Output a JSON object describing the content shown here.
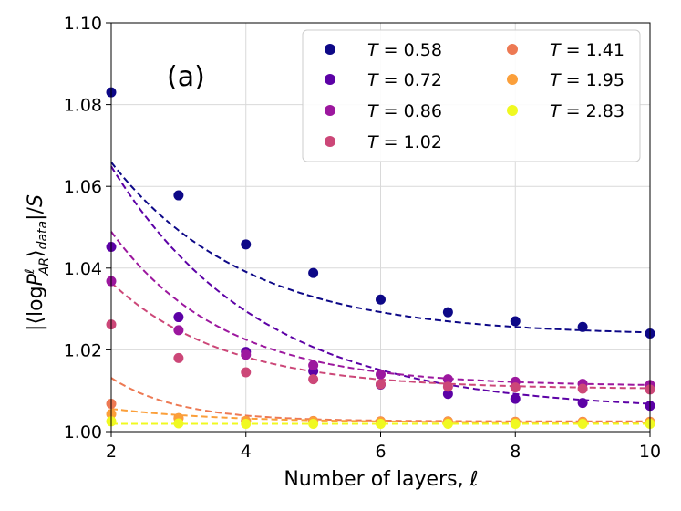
{
  "chart_data": {
    "type": "scatter",
    "panel_label": "(a)",
    "xlabel": "Number of layers, ℓ",
    "ylabel_parts": {
      "open": "|⟨log",
      "P": "P",
      "sup": "ℓ",
      "sub": "AR",
      "close": "⟩",
      "sub2": "data",
      "tail": "|/",
      "S": "S"
    },
    "xlim": [
      2,
      10
    ],
    "ylim": [
      1.0,
      1.1
    ],
    "xticks": [
      2,
      4,
      6,
      8,
      10
    ],
    "xtick_labels": [
      "2",
      "4",
      "6",
      "8",
      "10"
    ],
    "yticks": [
      1.0,
      1.02,
      1.04,
      1.06,
      1.08,
      1.1
    ],
    "ytick_labels": [
      "1.00",
      "1.02",
      "1.04",
      "1.06",
      "1.08",
      "1.10"
    ],
    "grid": true,
    "legend_position": "top-right",
    "legend_symbol": "T",
    "legend_eq": "=",
    "x": [
      2,
      3,
      4,
      5,
      6,
      7,
      8,
      9,
      10
    ],
    "series": [
      {
        "name": "0.58",
        "color": "#0d0887",
        "values": [
          1.083,
          1.0578,
          1.0458,
          1.0388,
          1.0323,
          1.0292,
          1.027,
          1.0256,
          1.024
        ],
        "fit": {
          "a": 1.0235,
          "b": 0.1153,
          "k": 0.5
        }
      },
      {
        "name": "0.72",
        "color": "#5c01a6",
        "values": [
          1.0452,
          1.028,
          1.0195,
          1.0148,
          1.0115,
          1.0092,
          1.008,
          1.007,
          1.0063
        ],
        "fit": {
          "a": 1.0052,
          "b": 0.1468,
          "k": 0.45
        }
      },
      {
        "name": "0.86",
        "color": "#9c179e",
        "values": [
          1.0368,
          1.0248,
          1.0188,
          1.0162,
          1.014,
          1.0128,
          1.0122,
          1.0117,
          1.0114
        ],
        "fit": {
          "a": 1.0111,
          "b": 0.1256,
          "k": 0.6
        }
      },
      {
        "name": "1.02",
        "color": "#cc4778",
        "values": [
          1.0262,
          1.018,
          1.0145,
          1.0128,
          1.0116,
          1.011,
          1.0108,
          1.0105,
          1.0103
        ],
        "fit": {
          "a": 1.0104,
          "b": 0.0866,
          "k": 0.6
        }
      },
      {
        "name": "1.41",
        "color": "#ed7953",
        "values": [
          1.0068,
          1.0033,
          1.0026,
          1.0026,
          1.0025,
          1.0025,
          1.0024,
          1.0024,
          1.0024
        ],
        "fit": {
          "a": 1.0025,
          "b": 0.0786,
          "k": 1.0
        }
      },
      {
        "name": "1.95",
        "color": "#fb9f3a",
        "values": [
          1.0043,
          1.0033,
          1.0026,
          1.0025,
          1.0024,
          1.0024,
          1.0023,
          1.0023,
          1.0023
        ],
        "fit": {
          "a": 1.0022,
          "b": 0.0112,
          "k": 0.6
        }
      },
      {
        "name": "2.83",
        "color": "#f0f921",
        "values": [
          1.0025,
          1.002,
          1.0019,
          1.0019,
          1.0019,
          1.0019,
          1.0019,
          1.0019,
          1.0019
        ],
        "fit": {
          "a": 1.0019,
          "b": 0.0,
          "k": 0.5
        }
      }
    ]
  }
}
